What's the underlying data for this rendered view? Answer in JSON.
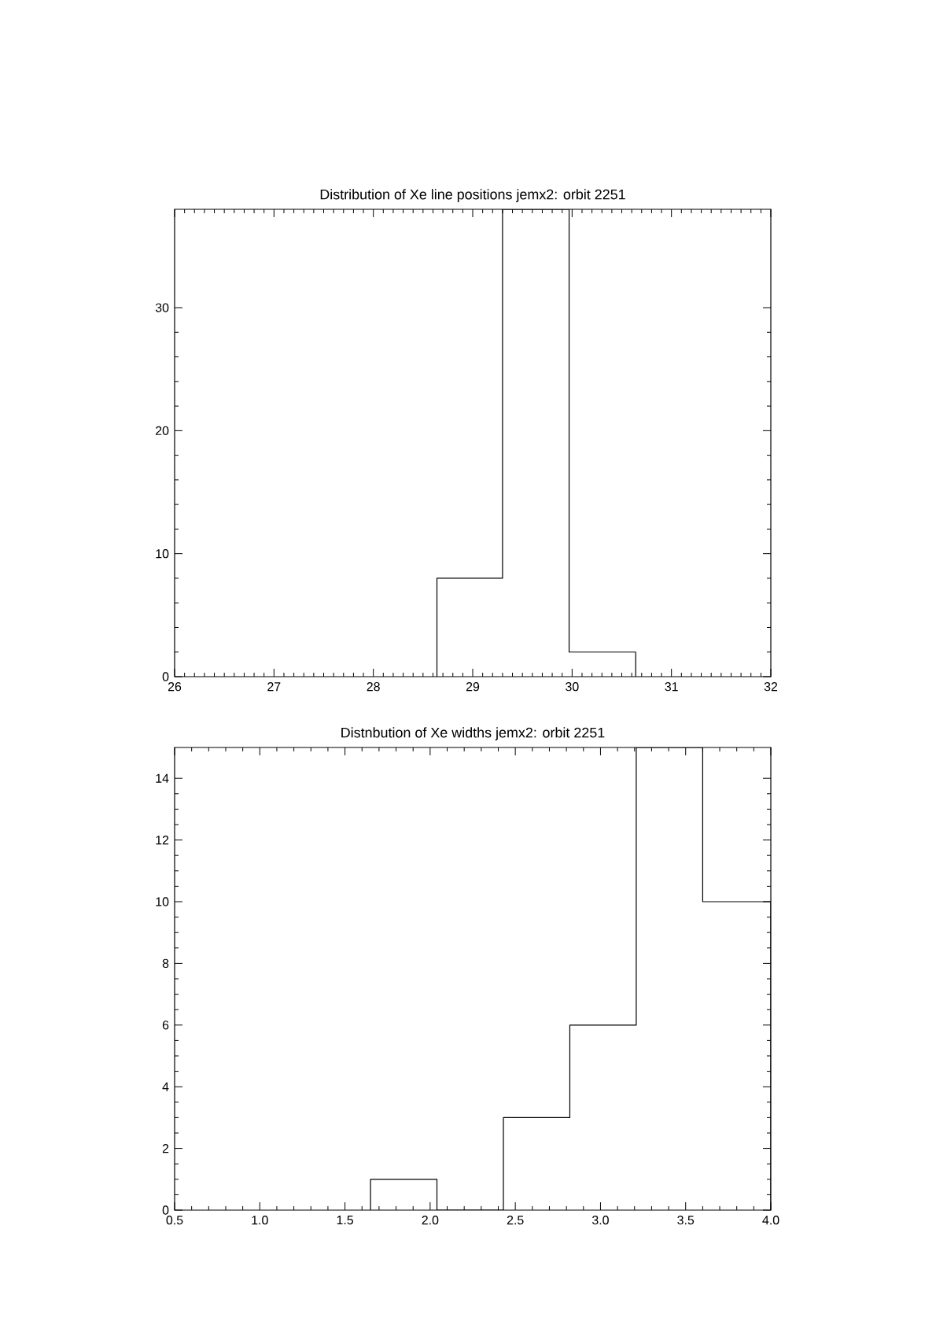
{
  "chart_data": [
    {
      "type": "histogram",
      "title": "Distribution of Xe line positions jemx2: orbit 2251",
      "bins": [
        28.64,
        29.3,
        29.97,
        30.64
      ],
      "values": [
        8,
        38,
        2
      ],
      "color": "#000000",
      "xlim": [
        26,
        32
      ],
      "ylim": [
        0,
        38
      ],
      "xticks": [
        26,
        27,
        28,
        29,
        30,
        31,
        32
      ],
      "yticks": [
        0,
        10,
        20,
        30
      ]
    },
    {
      "type": "histogram",
      "title": "Distnbution of Xe widths jemx2: orbit 2251",
      "bins": [
        1.65,
        2.04,
        2.43,
        2.82,
        3.21,
        3.6,
        4.0
      ],
      "values": [
        1,
        0,
        3,
        6,
        15,
        10
      ],
      "color": "#000000",
      "xlim": [
        0.5,
        4.0
      ],
      "ylim": [
        0,
        15
      ],
      "xticks": [
        {
          "value": 0.5,
          "label": "0.5"
        },
        {
          "value": 1.0,
          "label": "1.0"
        },
        {
          "value": 1.5,
          "label": "1.5"
        },
        {
          "value": 2.0,
          "label": "2.0"
        },
        {
          "value": 2.5,
          "label": "2.5"
        },
        {
          "value": 3.0,
          "label": "3.0"
        },
        {
          "value": 3.5,
          "label": "3.5"
        },
        {
          "value": 4.0,
          "label": "4.0"
        }
      ],
      "yticks": [
        0,
        2,
        4,
        6,
        8,
        10,
        12,
        14
      ]
    }
  ]
}
